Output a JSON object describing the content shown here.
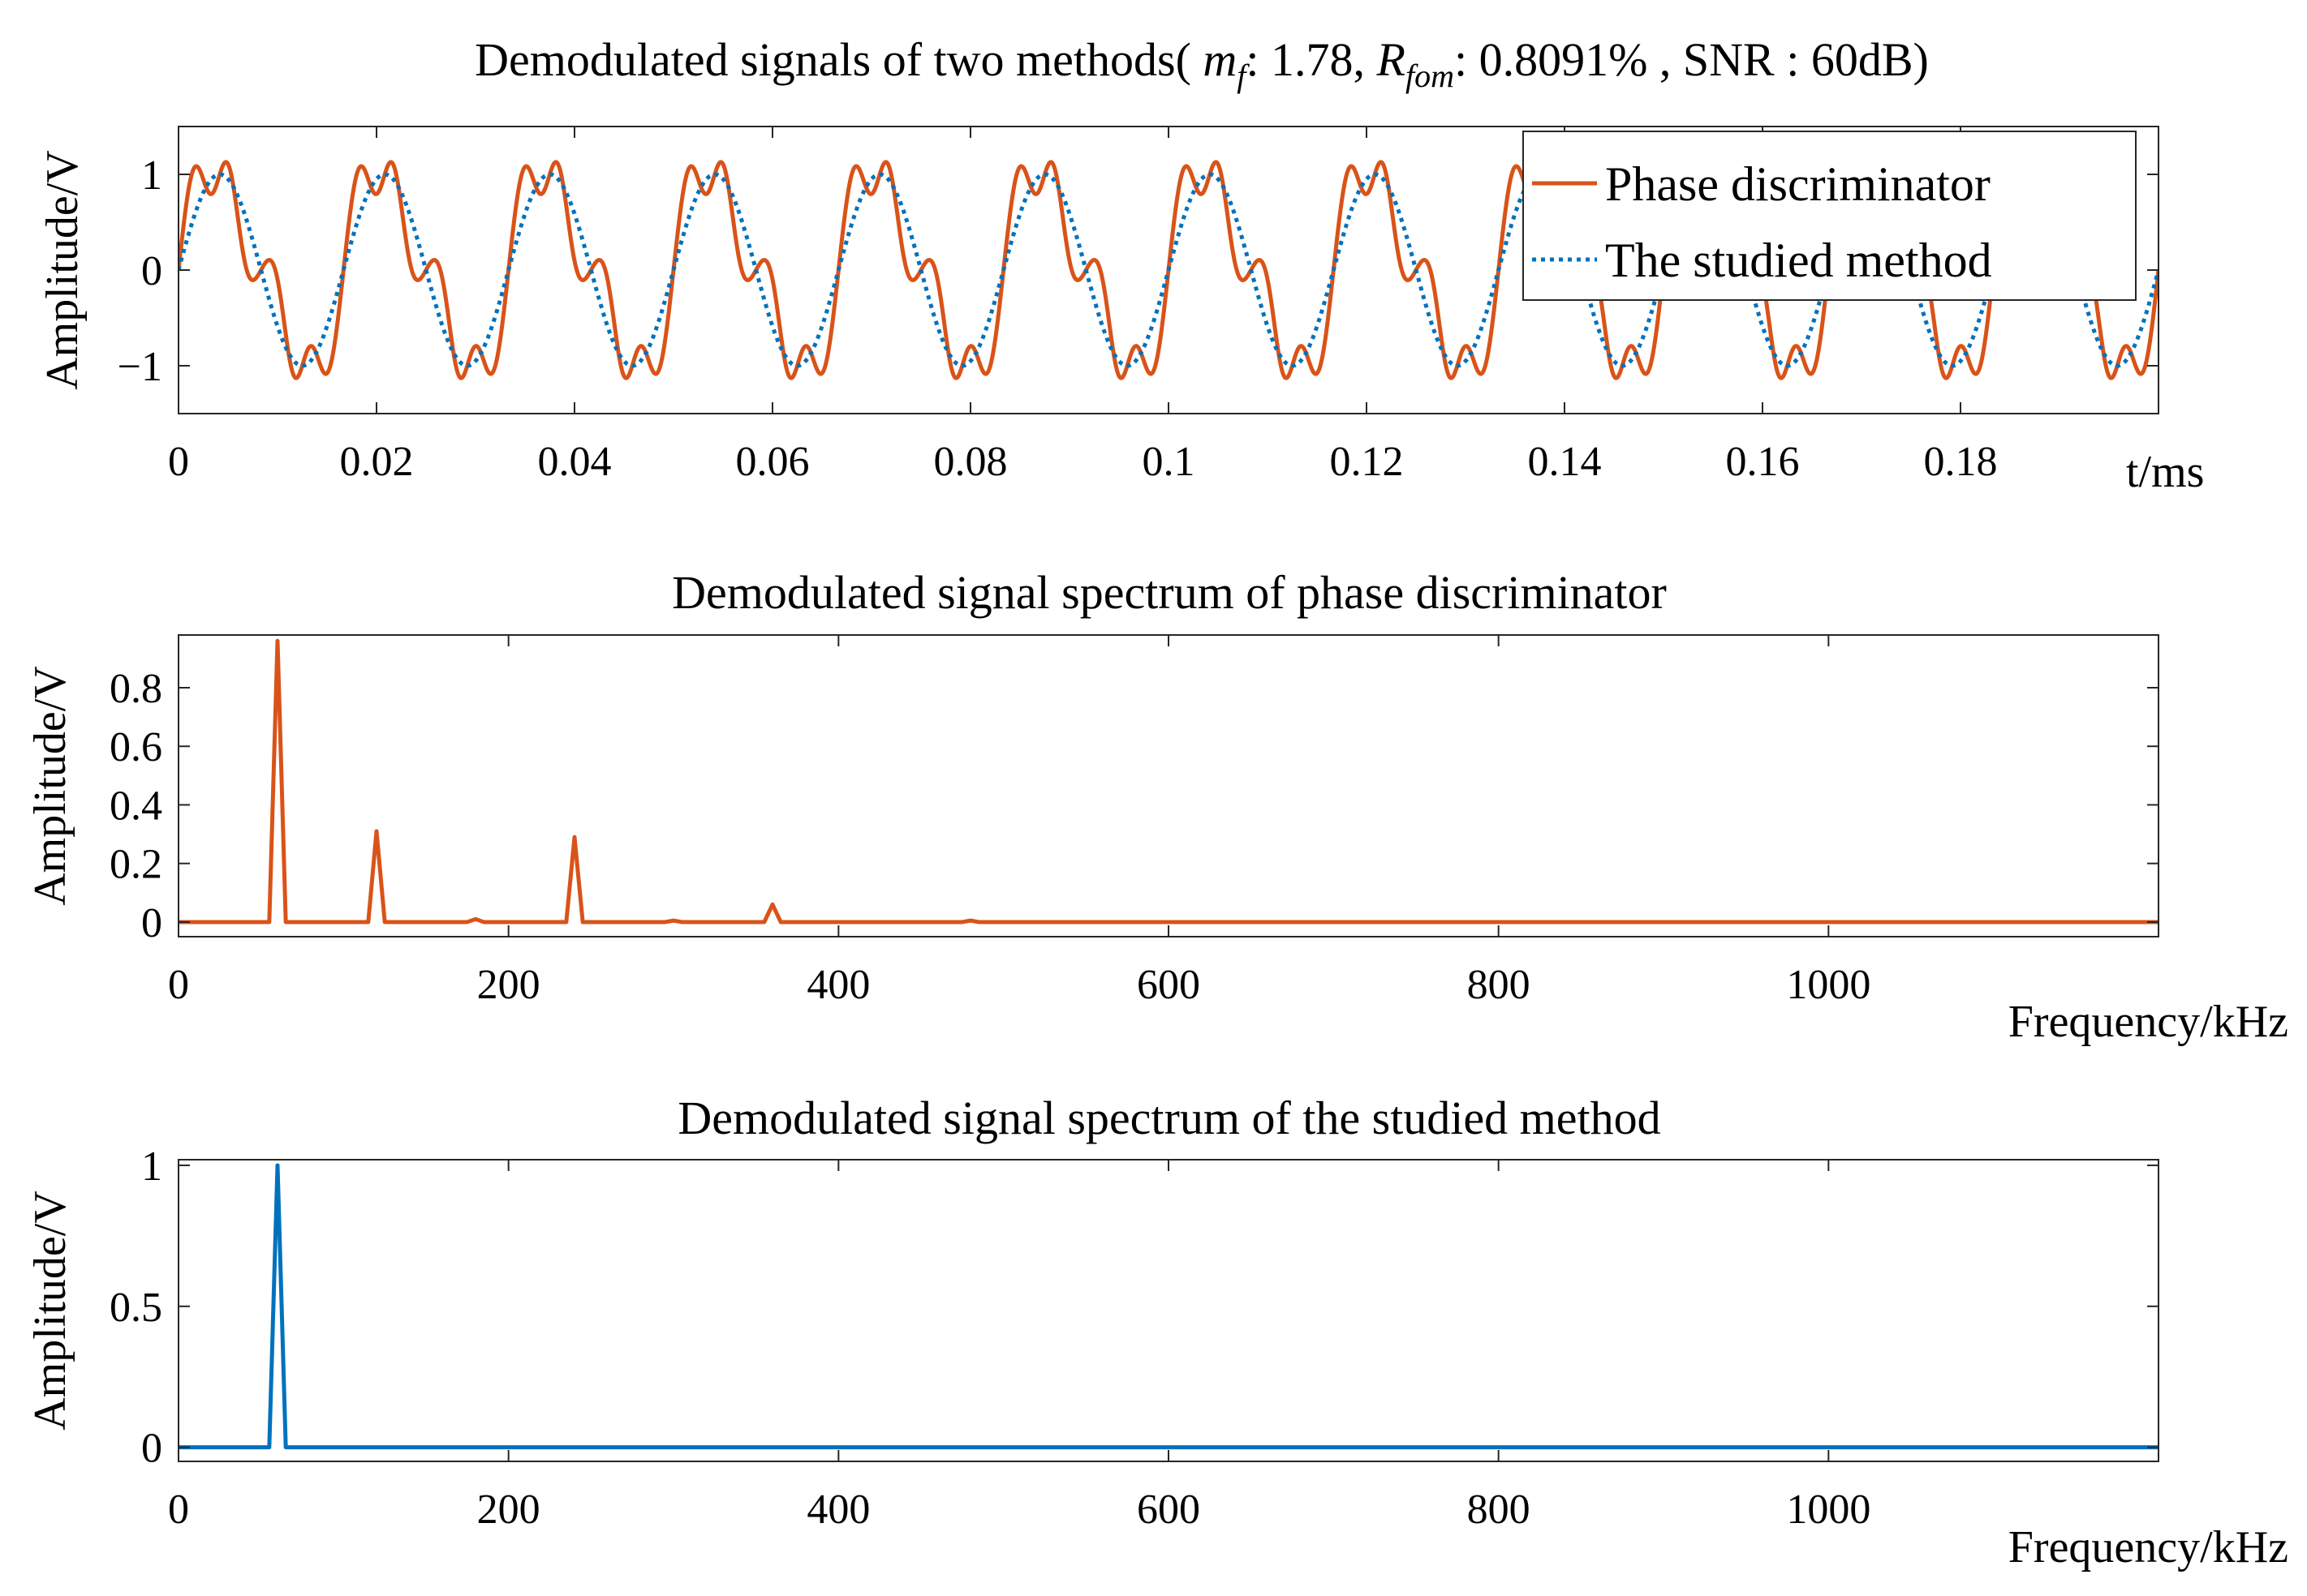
{
  "chart_data": [
    {
      "type": "line",
      "title": "Demodulated signals of two methods( m_f: 1.78, R_fom: 0.8091% , SNR : 60dB)",
      "title_parts": {
        "prefix": "Demodulated signals of two methods( ",
        "mf_sym": "m",
        "mf_sub": "f",
        "mf_val": ": 1.78, ",
        "rfom_sym": "R",
        "rfom_sub": "fom",
        "rfom_val": ": 0.8091% , SNR : 60dB)"
      },
      "xlabel": "t/ms",
      "ylabel": "Amplitude/V",
      "xlim": [
        0,
        0.2
      ],
      "ylim": [
        -1.5,
        1.5
      ],
      "xticks": [
        0,
        0.02,
        0.04,
        0.06,
        0.08,
        0.1,
        0.12,
        0.14,
        0.16,
        0.18
      ],
      "xtick_labels": [
        "0",
        "0.02",
        "0.04",
        "0.06",
        "0.08",
        "0.1",
        "0.12",
        "0.14",
        "0.16",
        "0.18"
      ],
      "yticks": [
        -1,
        0,
        1
      ],
      "ytick_labels": [
        "−1",
        "0",
        "1"
      ],
      "grid": false,
      "legend": "top-right",
      "series": [
        {
          "name": "Phase discriminator",
          "style": "solid",
          "color": "#D95319",
          "model": "sin(2πft) + 0.3·sin(4πft) + 0.3·sin(8πft)",
          "frequency_kHz": 60,
          "harmonic_amplitudes": [
            [
              1,
              1.0
            ],
            [
              2,
              0.3
            ],
            [
              4,
              0.3
            ],
            [
              6,
              0.05
            ]
          ]
        },
        {
          "name": "The studied method",
          "style": "dotted",
          "color": "#0072BD",
          "model": "sin(2πft)",
          "frequency_kHz": 60,
          "harmonic_amplitudes": [
            [
              1,
              1.0
            ]
          ]
        }
      ]
    },
    {
      "type": "line",
      "title": "Demodulated signal spectrum of phase discriminator",
      "xlabel": "Frequency/kHz",
      "ylabel": "Amplitude/V",
      "xlim": [
        0,
        1200
      ],
      "ylim": [
        -0.05,
        0.98
      ],
      "xticks": [
        0,
        200,
        400,
        600,
        800,
        1000
      ],
      "xtick_labels": [
        "0",
        "200",
        "400",
        "600",
        "800",
        "1000"
      ],
      "yticks": [
        0,
        0.2,
        0.4,
        0.6,
        0.8
      ],
      "ytick_labels": [
        "0",
        "0.2",
        "0.4",
        "0.6",
        "0.8"
      ],
      "grid": false,
      "color": "#D95319",
      "peaks": [
        {
          "freq": 60,
          "amp": 0.96
        },
        {
          "freq": 120,
          "amp": 0.31
        },
        {
          "freq": 180,
          "amp": 0.01
        },
        {
          "freq": 240,
          "amp": 0.29
        },
        {
          "freq": 300,
          "amp": 0.005
        },
        {
          "freq": 360,
          "amp": 0.06
        },
        {
          "freq": 480,
          "amp": 0.005
        }
      ]
    },
    {
      "type": "line",
      "title": "Demodulated signal spectrum of the studied method",
      "xlabel": "Frequency/kHz",
      "ylabel": "Amplitude/V",
      "xlim": [
        0,
        1200
      ],
      "ylim": [
        -0.05,
        1.02
      ],
      "xticks": [
        0,
        200,
        400,
        600,
        800,
        1000
      ],
      "xtick_labels": [
        "0",
        "200",
        "400",
        "600",
        "800",
        "1000"
      ],
      "yticks": [
        0,
        0.5,
        1
      ],
      "ytick_labels": [
        "0",
        "0.5",
        "1"
      ],
      "grid": false,
      "color": "#0072BD",
      "peaks": [
        {
          "freq": 60,
          "amp": 1.0
        }
      ]
    }
  ]
}
